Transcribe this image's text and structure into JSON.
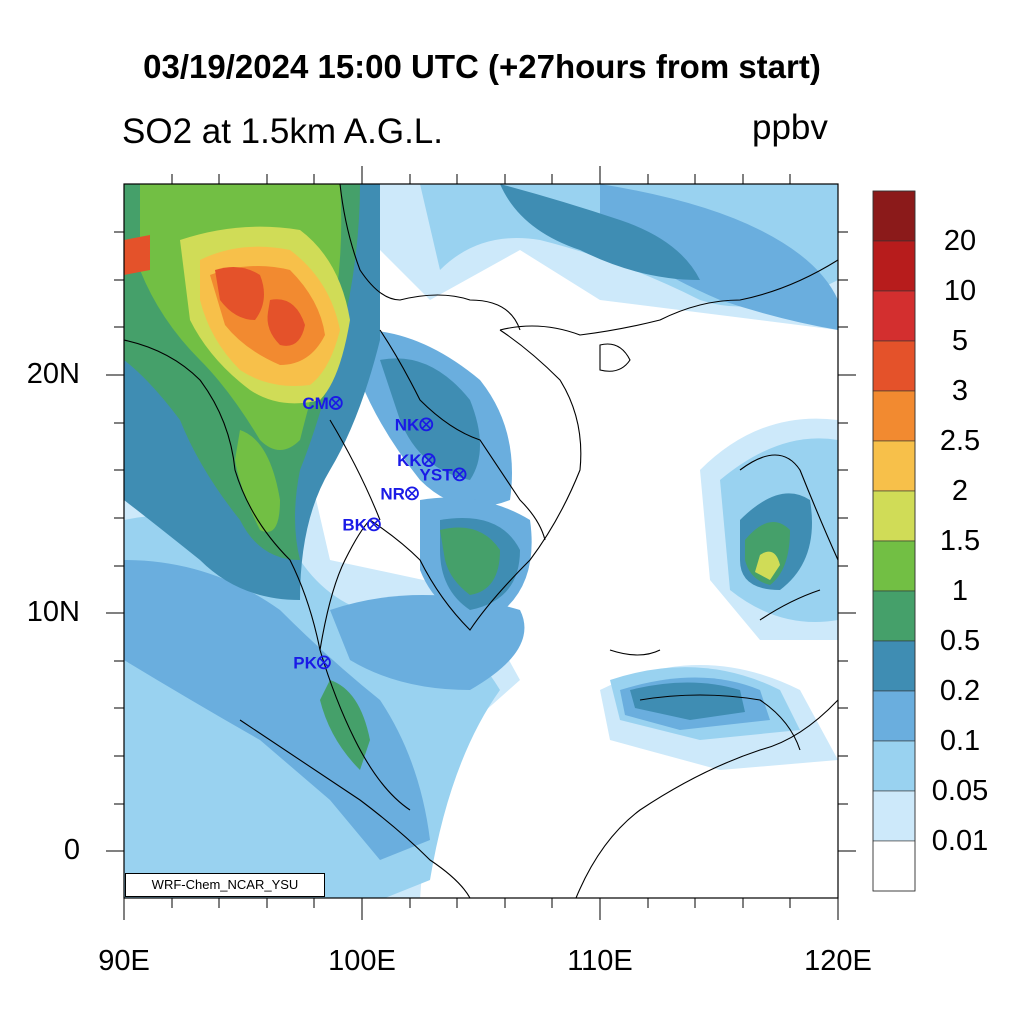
{
  "title": "03/19/2024 15:00 UTC (+27hours from start)",
  "subtitle": "SO2 at 1.5km A.G.L.",
  "units": "ppbv",
  "credit": "WRF-Chem_NCAR_YSU",
  "axes": {
    "lat_labels": [
      "20N",
      "10N",
      "0"
    ],
    "lon_labels": [
      "90E",
      "100E",
      "110E",
      "120E"
    ]
  },
  "colorbar": {
    "labels": [
      "20",
      "10",
      "5",
      "3",
      "2.5",
      "2",
      "1.5",
      "1",
      "0.5",
      "0.2",
      "0.1",
      "0.05",
      "0.01"
    ],
    "colors": [
      "#8b1a1a",
      "#b71c1c",
      "#d32f2f",
      "#e4522a",
      "#f28a30",
      "#f7c04a",
      "#d0dc57",
      "#72bf44",
      "#45a06a",
      "#3f8db3",
      "#6aaede",
      "#99d2f0",
      "#cde9fa",
      "#ffffff"
    ]
  },
  "stations": [
    {
      "code": "CM",
      "lon": 98.9,
      "lat": 18.8
    },
    {
      "code": "NK",
      "lon": 102.7,
      "lat": 17.9
    },
    {
      "code": "KK",
      "lon": 102.8,
      "lat": 16.4
    },
    {
      "code": "YST",
      "lon": 104.1,
      "lat": 15.8
    },
    {
      "code": "NR",
      "lon": 102.1,
      "lat": 15.0
    },
    {
      "code": "BK",
      "lon": 100.5,
      "lat": 13.7
    },
    {
      "code": "PK",
      "lon": 98.4,
      "lat": 7.9
    }
  ]
}
